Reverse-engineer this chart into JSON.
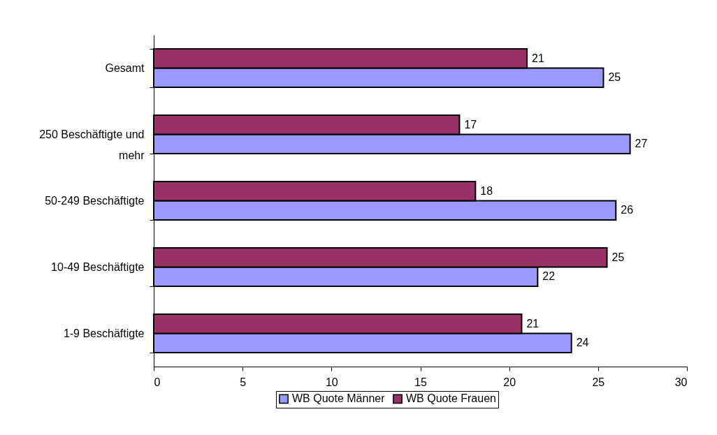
{
  "chart_data": {
    "type": "bar",
    "orientation": "horizontal",
    "categories": [
      "Gesamt",
      "250 Beschäftigte und mehr",
      "50-249 Beschäftigte",
      "10-49 Beschäftigte",
      "1-9 Beschäftigte"
    ],
    "series": [
      {
        "name": "WB Quote Männer",
        "color": "#9999ff",
        "values": [
          25.3,
          26.8,
          26.0,
          21.6,
          23.5
        ],
        "value_labels": [
          "25",
          "27",
          "26",
          "22",
          "24"
        ]
      },
      {
        "name": "WB Quote Frauen",
        "color": "#993366",
        "values": [
          21.0,
          17.2,
          18.1,
          25.5,
          20.7
        ],
        "value_labels": [
          "21",
          "17",
          "18",
          "25",
          "21"
        ]
      }
    ],
    "xlim": [
      0,
      30
    ],
    "xticks": [
      0,
      5,
      10,
      15,
      20,
      25,
      30
    ],
    "grid": false,
    "legend": "bottom"
  }
}
